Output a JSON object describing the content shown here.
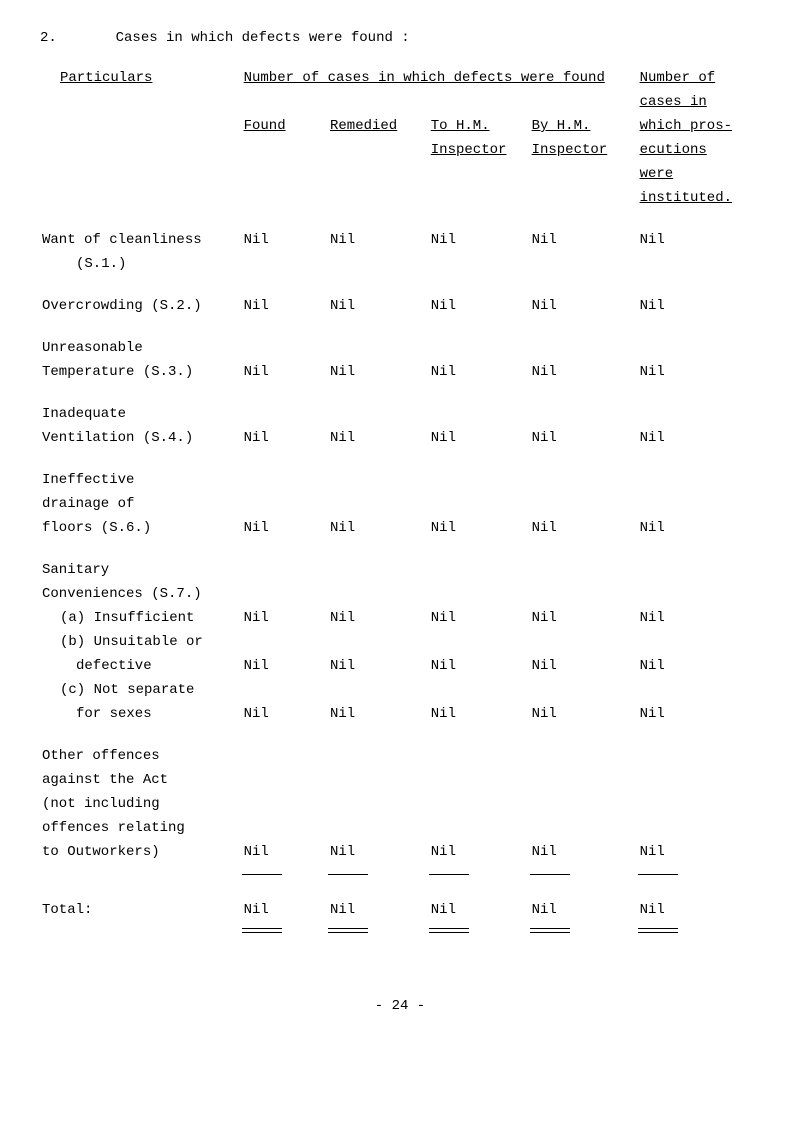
{
  "section_number": "2.",
  "section_title": "Cases in which defects were found :",
  "headers": {
    "particulars": "Particulars",
    "group": "Number of cases in which defects were found",
    "found": "Found",
    "remedied": "Remedied",
    "tohm1": "To H.M.",
    "tohm2": "Inspector",
    "byhm1": "By H.M.",
    "byhm2": "Inspector",
    "prosec1": "Number of",
    "prosec2": "cases in",
    "prosec3": "which pros-",
    "prosec4": "ecutions",
    "prosec5": "were",
    "prosec6": "instituted."
  },
  "rows": [
    {
      "label1": "Want of cleanliness",
      "label2": "(S.1.)",
      "found": "Nil",
      "remedied": "Nil",
      "tohm": "Nil",
      "byhm": "Nil",
      "prosec": "Nil"
    },
    {
      "label1": "Overcrowding (S.2.)",
      "found": "Nil",
      "remedied": "Nil",
      "tohm": "Nil",
      "byhm": "Nil",
      "prosec": "Nil"
    },
    {
      "label1": "Unreasonable",
      "label2": "Temperature  (S.3.)",
      "found": "Nil",
      "remedied": "Nil",
      "tohm": "Nil",
      "byhm": "Nil",
      "prosec": "Nil"
    },
    {
      "label1": "Inadequate",
      "label2": "Ventilation  (S.4.)",
      "found": "Nil",
      "remedied": "Nil",
      "tohm": "Nil",
      "byhm": "Nil",
      "prosec": "Nil"
    },
    {
      "label1": "Ineffective",
      "label2": "drainage of",
      "label3": "floors       (S.6.)",
      "found": "Nil",
      "remedied": "Nil",
      "tohm": "Nil",
      "byhm": "Nil",
      "prosec": "Nil"
    }
  ],
  "sanitary": {
    "header1": "Sanitary",
    "header2": "Conveniences (S.7.)",
    "a_label1": "(a)  Insufficient",
    "a": {
      "found": "Nil",
      "remedied": "Nil",
      "tohm": "Nil",
      "byhm": "Nil",
      "prosec": "Nil"
    },
    "b_label1": "(b)  Unsuitable or",
    "b_label2": "defective",
    "b": {
      "found": "Nil",
      "remedied": "Nil",
      "tohm": "Nil",
      "byhm": "Nil",
      "prosec": "Nil"
    },
    "c_label1": "(c)  Not separate",
    "c_label2": "for sexes",
    "c": {
      "found": "Nil",
      "remedied": "Nil",
      "tohm": "Nil",
      "byhm": "Nil",
      "prosec": "Nil"
    }
  },
  "other": {
    "l1": "Other offences",
    "l2": "against the Act",
    "l3": "(not including",
    "l4": "offences relating",
    "l5": "to Outworkers)",
    "found": "Nil",
    "remedied": "Nil",
    "tohm": "Nil",
    "byhm": "Nil",
    "prosec": "Nil"
  },
  "totals": {
    "label": "Total:",
    "found": "Nil",
    "remedied": "Nil",
    "tohm": "Nil",
    "byhm": "Nil",
    "prosec": "Nil"
  },
  "page_number": "- 24 -"
}
